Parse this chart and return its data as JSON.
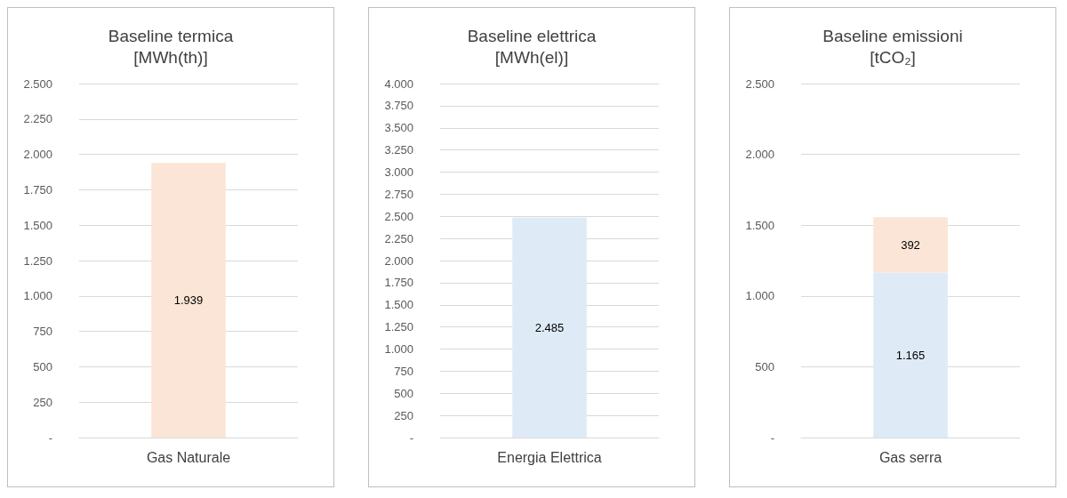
{
  "chart_data": [
    {
      "type": "bar",
      "title": "Baseline termica\n[MWh(th)]",
      "categories": [
        "Gas Naturale"
      ],
      "series": [
        {
          "color": "#fbe5d6",
          "values": [
            1939
          ],
          "value_labels": [
            "1.939"
          ]
        }
      ],
      "ylim": [
        0,
        2500
      ],
      "yticks": [
        {
          "value": 0,
          "label": "-"
        },
        {
          "value": 250,
          "label": "250"
        },
        {
          "value": 500,
          "label": "500"
        },
        {
          "value": 750,
          "label": "750"
        },
        {
          "value": 1000,
          "label": "1.000"
        },
        {
          "value": 1250,
          "label": "1.250"
        },
        {
          "value": 1500,
          "label": "1.500"
        },
        {
          "value": 1750,
          "label": "1.750"
        },
        {
          "value": 2000,
          "label": "2.000"
        },
        {
          "value": 2250,
          "label": "2.250"
        },
        {
          "value": 2500,
          "label": "2.500"
        }
      ],
      "grid": "y"
    },
    {
      "type": "bar",
      "title": "Baseline elettrica\n[MWh(el)]",
      "categories": [
        "Energia Elettrica"
      ],
      "series": [
        {
          "color": "#deebf7",
          "values": [
            2485
          ],
          "value_labels": [
            "2.485"
          ]
        }
      ],
      "ylim": [
        0,
        4000
      ],
      "yticks": [
        {
          "value": 0,
          "label": "-"
        },
        {
          "value": 250,
          "label": "250"
        },
        {
          "value": 500,
          "label": "500"
        },
        {
          "value": 750,
          "label": "750"
        },
        {
          "value": 1000,
          "label": "1.000"
        },
        {
          "value": 1250,
          "label": "1.250"
        },
        {
          "value": 1500,
          "label": "1.500"
        },
        {
          "value": 1750,
          "label": "1.750"
        },
        {
          "value": 2000,
          "label": "2.000"
        },
        {
          "value": 2250,
          "label": "2.250"
        },
        {
          "value": 2500,
          "label": "2.500"
        },
        {
          "value": 2750,
          "label": "2.750"
        },
        {
          "value": 3000,
          "label": "3.000"
        },
        {
          "value": 3250,
          "label": "3.250"
        },
        {
          "value": 3500,
          "label": "3.500"
        },
        {
          "value": 3750,
          "label": "3.750"
        },
        {
          "value": 4000,
          "label": "4.000"
        }
      ],
      "grid": "y"
    },
    {
      "type": "bar",
      "title": "Baseline emissioni\n[tCO₂]",
      "categories": [
        "Gas serra"
      ],
      "stacked": true,
      "series": [
        {
          "color": "#deebf7",
          "values": [
            1165
          ],
          "value_labels": [
            "1.165"
          ]
        },
        {
          "color": "#fbe5d6",
          "values": [
            392
          ],
          "value_labels": [
            "392"
          ]
        }
      ],
      "ylim": [
        0,
        2500
      ],
      "yticks": [
        {
          "value": 0,
          "label": "-"
        },
        {
          "value": 500,
          "label": "500"
        },
        {
          "value": 1000,
          "label": "1.000"
        },
        {
          "value": 1500,
          "label": "1.500"
        },
        {
          "value": 2000,
          "label": "2.000"
        },
        {
          "value": 2500,
          "label": "2.500"
        }
      ],
      "grid": "y"
    }
  ]
}
